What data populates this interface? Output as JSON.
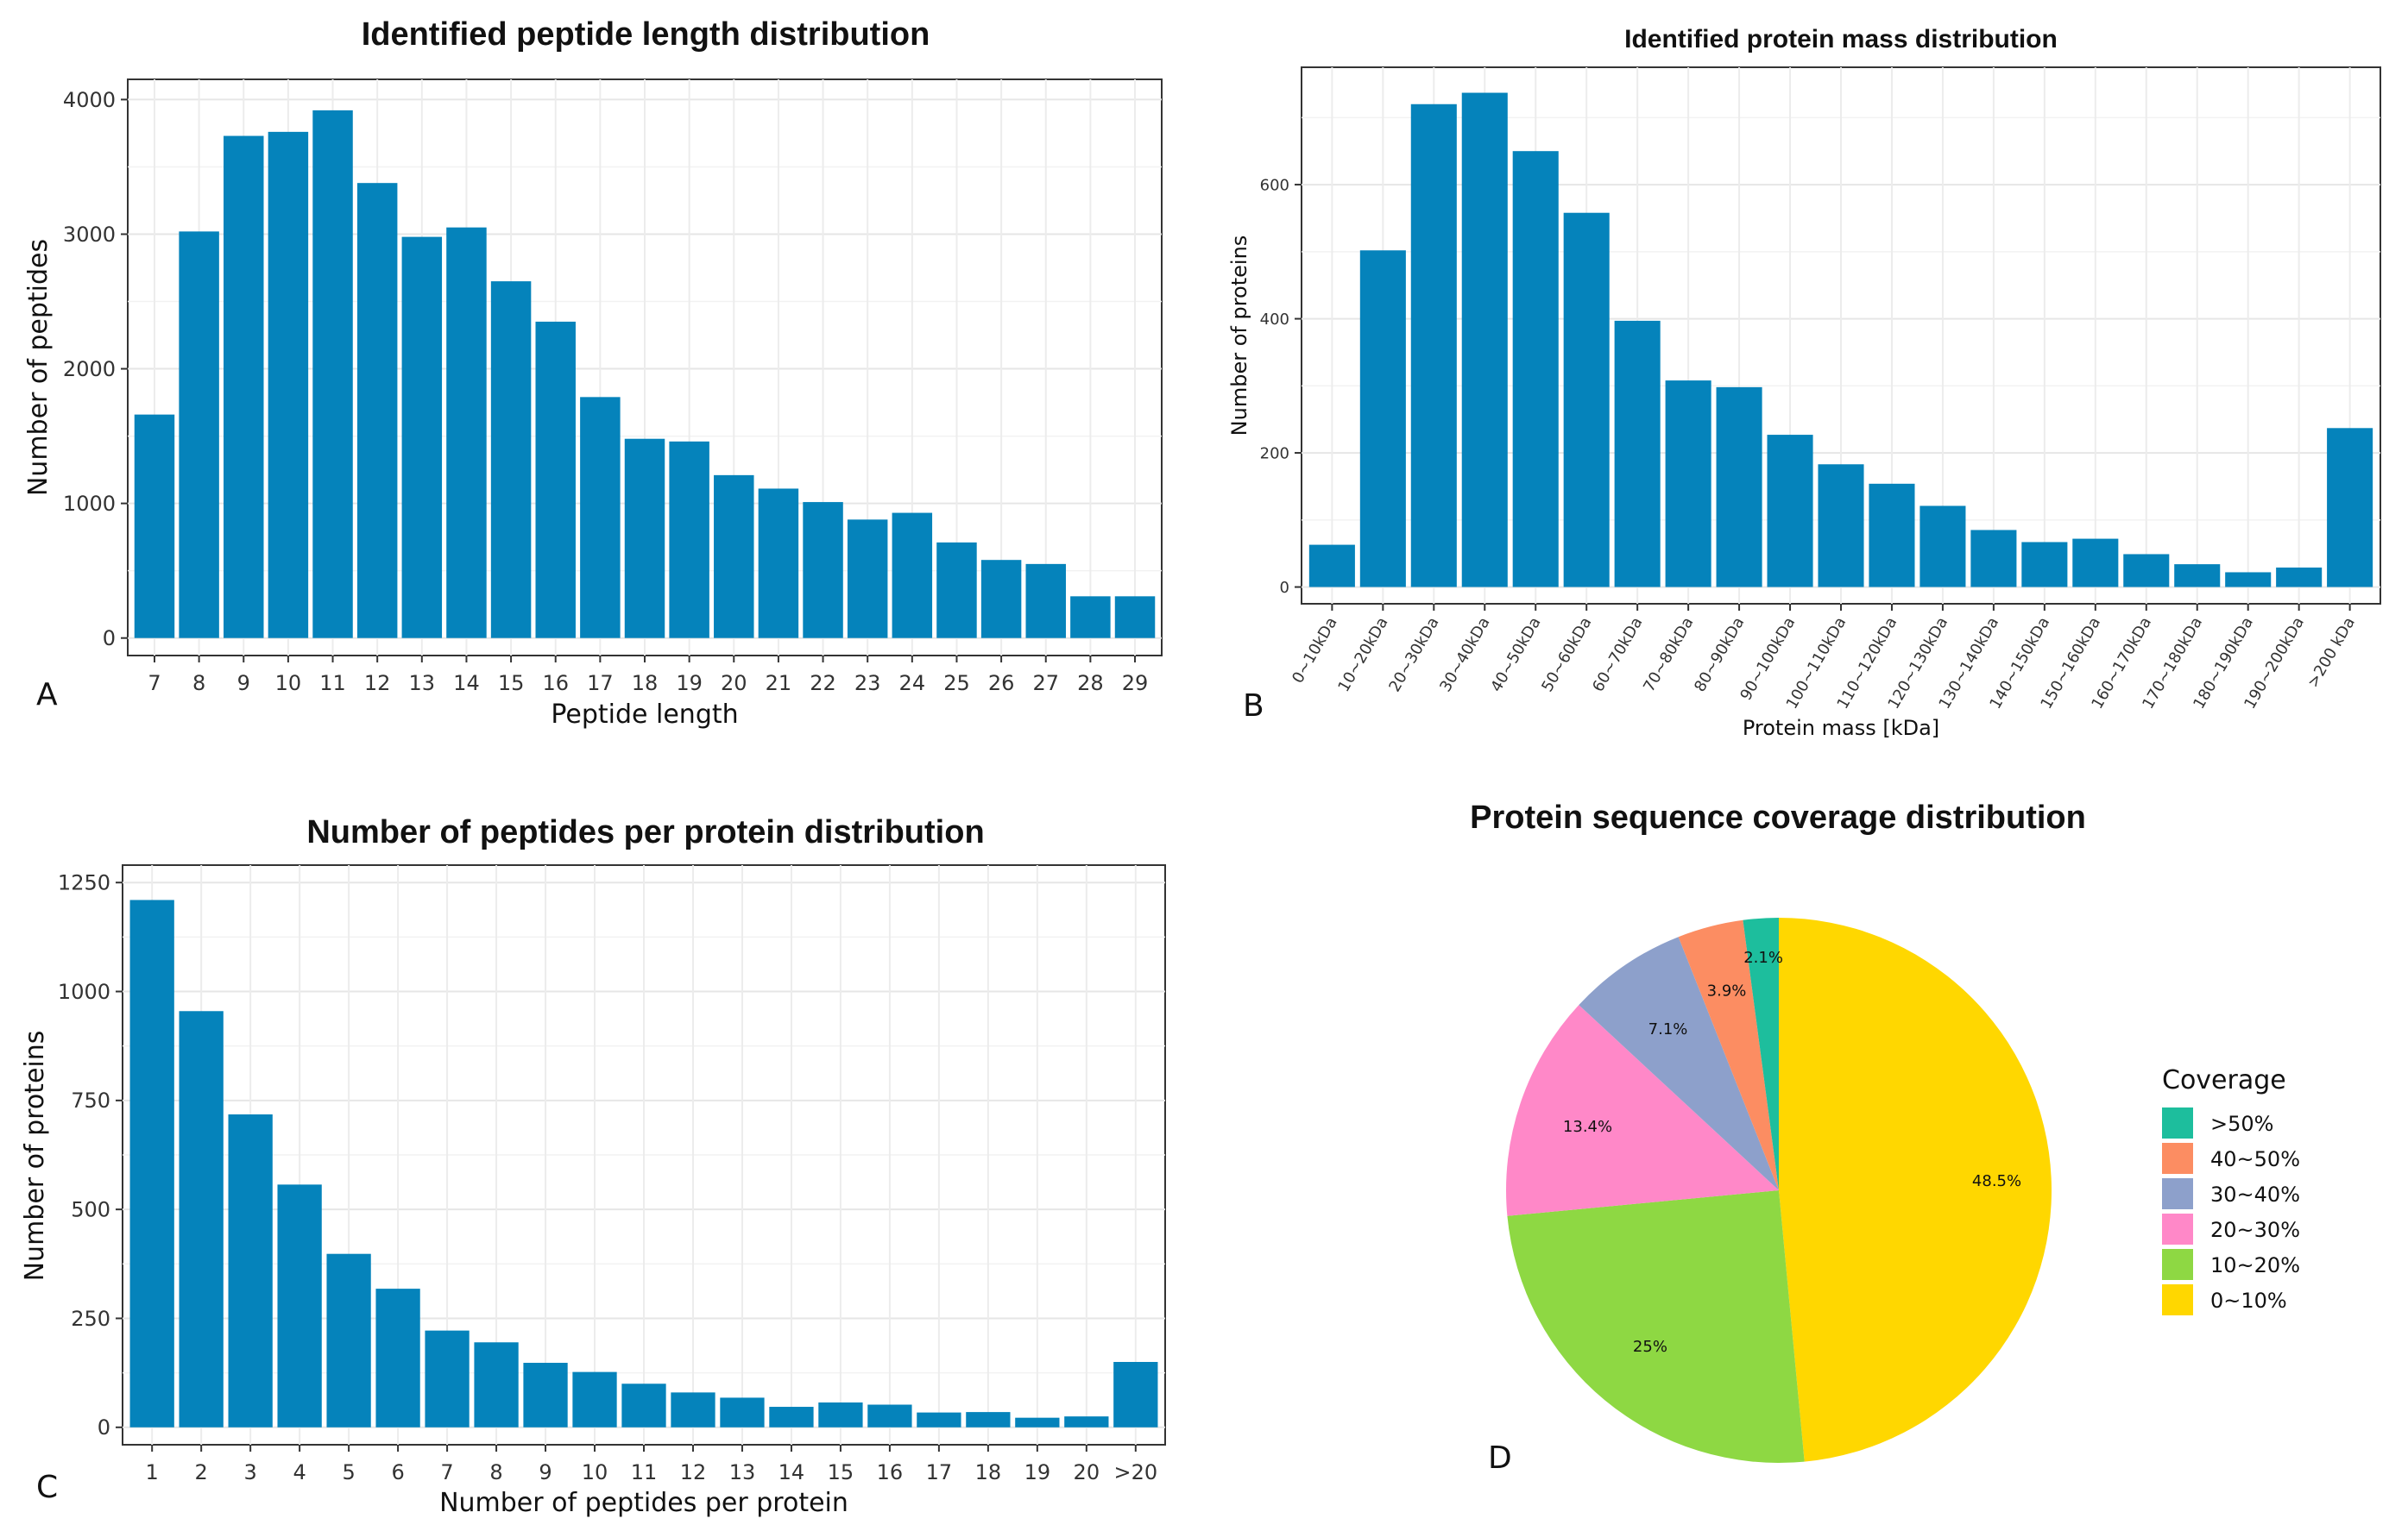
{
  "chart_data": [
    {
      "panel": "A",
      "type": "bar",
      "title": "Identified peptide length distribution",
      "xlabel": "Peptide length",
      "ylabel": "Number of peptides",
      "categories": [
        "7",
        "8",
        "9",
        "10",
        "11",
        "12",
        "13",
        "14",
        "15",
        "16",
        "17",
        "18",
        "19",
        "20",
        "21",
        "22",
        "23",
        "24",
        "25",
        "26",
        "27",
        "28",
        "29"
      ],
      "values": [
        1660,
        3020,
        3730,
        3760,
        3920,
        3380,
        2980,
        3050,
        2650,
        2350,
        1790,
        1480,
        1460,
        1210,
        1110,
        1010,
        880,
        930,
        710,
        580,
        550,
        310,
        310
      ],
      "ylim": [
        -130,
        4150
      ],
      "yticks": [
        0,
        1000,
        2000,
        3000,
        4000
      ],
      "bar_color": "#0583BB",
      "grid": true
    },
    {
      "panel": "B",
      "type": "bar",
      "title": "Identified protein mass distribution",
      "xlabel": "Protein mass [kDa]",
      "ylabel": "Number of proteins",
      "categories": [
        "0~10kDa",
        "10~20kDa",
        "20~30kDa",
        "30~40kDa",
        "40~50kDa",
        "50~60kDa",
        "60~70kDa",
        "70~80kDa",
        "80~90kDa",
        "90~100kDa",
        "100~110kDa",
        "110~120kDa",
        "120~130kDa",
        "130~140kDa",
        "140~150kDa",
        "150~160kDa",
        "160~170kDa",
        "170~180kDa",
        "180~190kDa",
        "190~200kDa",
        ">200 kDa"
      ],
      "values": [
        63,
        502,
        720,
        737,
        650,
        558,
        397,
        308,
        298,
        227,
        183,
        154,
        121,
        85,
        67,
        72,
        49,
        34,
        22,
        29,
        237
      ],
      "ylim": [
        -25,
        775
      ],
      "yticks": [
        0,
        200,
        400,
        600
      ],
      "bar_color": "#0583BB",
      "grid": true
    },
    {
      "panel": "C",
      "type": "bar",
      "title": "Number of peptides per protein distribution",
      "xlabel": "Number of peptides per protein",
      "ylabel": "Number of proteins",
      "categories": [
        "1",
        "2",
        "3",
        "4",
        "5",
        "6",
        "7",
        "8",
        "9",
        "10",
        "11",
        "12",
        "13",
        "14",
        "15",
        "16",
        "17",
        "18",
        "19",
        "20",
        ">20"
      ],
      "values": [
        1210,
        955,
        718,
        557,
        398,
        318,
        222,
        195,
        148,
        127,
        100,
        80,
        68,
        47,
        57,
        52,
        34,
        35,
        22,
        25,
        150
      ],
      "ylim": [
        -40,
        1290
      ],
      "yticks": [
        0,
        250,
        500,
        750,
        1000,
        1250
      ],
      "bar_color": "#0583BB",
      "grid": true
    },
    {
      "panel": "D",
      "type": "pie",
      "title": "Protein sequence coverage distribution",
      "legend_title": "Coverage",
      "legend_position": "right",
      "categories": [
        ">50%",
        "40~50%",
        "30~40%",
        "20~30%",
        "10~20%",
        "0~10%"
      ],
      "values": [
        2.1,
        3.9,
        7.1,
        13.4,
        25,
        48.5
      ],
      "labels": [
        "2.1%",
        "3.9%",
        "7.1%",
        "13.4%",
        "25%",
        "48.5%"
      ],
      "colors": [
        "#1DBE9D",
        "#FC8D62",
        "#8DA0CB",
        "#FF88C8",
        "#8ED843",
        "#FFD700"
      ]
    }
  ],
  "panel_letters": [
    "A",
    "B",
    "C",
    "D"
  ]
}
